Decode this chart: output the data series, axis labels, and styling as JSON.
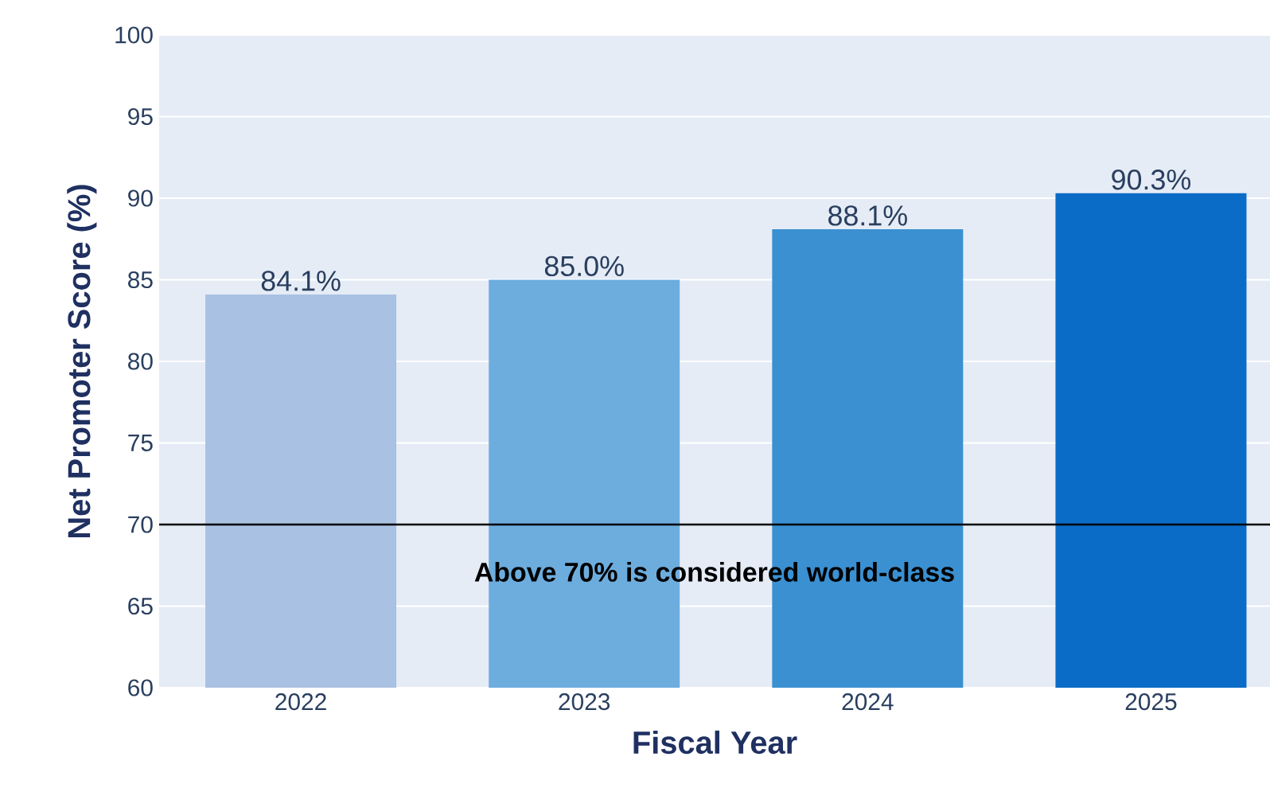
{
  "chart_data": {
    "type": "bar",
    "categories": [
      "2022",
      "2023",
      "2024",
      "2025"
    ],
    "values": [
      84.1,
      85.0,
      88.1,
      90.3
    ],
    "value_labels": [
      "84.1%",
      "85.0%",
      "88.1%",
      "90.3%"
    ],
    "colors": [
      "#a9c1e2",
      "#6dadde",
      "#3a90d1",
      "#0a6cc6"
    ],
    "xlabel": "Fiscal Year",
    "ylabel": "Net Promoter Score (%)",
    "ylim": [
      60,
      100
    ],
    "yticks": [
      60,
      65,
      70,
      75,
      80,
      85,
      90,
      95,
      100
    ],
    "grid": "y",
    "ref_lines": [
      {
        "axis": "y",
        "value": 70,
        "label": "Above 70% is considered world-class",
        "color": "#000000"
      }
    ]
  }
}
